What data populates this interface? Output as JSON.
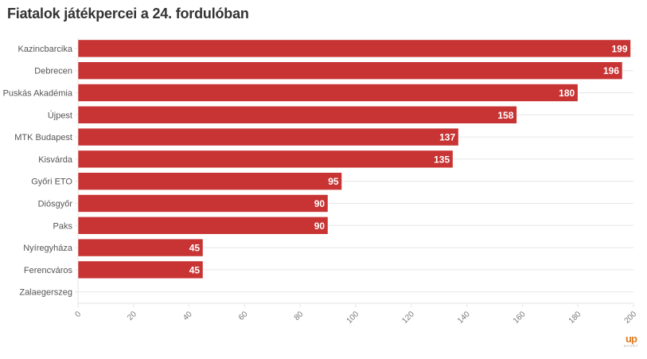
{
  "title": "Fiatalok játékpercei a 24. fordulóban",
  "logo": {
    "main": "up",
    "sub": "SPORT"
  },
  "colors": {
    "bar": "#c83434",
    "grid": "#e6e6e6",
    "title": "#333333",
    "logo": "#e07a1f"
  },
  "chart_data": {
    "type": "bar",
    "orientation": "horizontal",
    "title": "Fiatalok játékpercei a 24. fordulóban",
    "xlabel": "",
    "ylabel": "",
    "categories": [
      "Kazincbarcika",
      "Debrecen",
      "Puskás Akadémia",
      "Újpest",
      "MTK Budapest",
      "Kisvárda",
      "Győri ETO",
      "Diósgyőr",
      "Paks",
      "Nyíregyháza",
      "Ferencváros",
      "Zalaegerszeg"
    ],
    "values": [
      199,
      196,
      180,
      158,
      137,
      135,
      95,
      90,
      90,
      45,
      45,
      0
    ],
    "value_labels": [
      "199",
      "196",
      "180",
      "158",
      "137",
      "135",
      "95",
      "90",
      "90",
      "45",
      "45",
      ""
    ],
    "xlim": [
      0,
      200
    ],
    "xticks": [
      0,
      20,
      40,
      60,
      80,
      100,
      120,
      140,
      160,
      180,
      200
    ],
    "tick_label_rotation": "diagonal",
    "grid": true,
    "legend": "none"
  }
}
